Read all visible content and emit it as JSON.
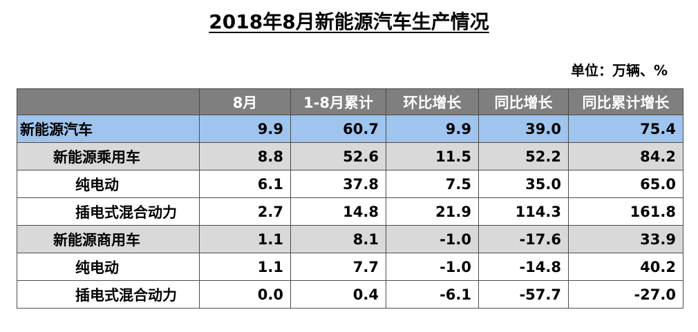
{
  "title": "2018年8月新能源汽车生产情况",
  "unit": "单位：万辆、%",
  "table": {
    "headers": [
      "",
      "8月",
      "1-8月累计",
      "环比增长",
      "同比增长",
      "同比累计增长"
    ],
    "rows": [
      {
        "name": "新能源汽车",
        "values": [
          "9.9",
          "60.7",
          "9.9",
          "39.0",
          "75.4"
        ]
      },
      {
        "name": "新能源乘用车",
        "values": [
          "8.8",
          "52.6",
          "11.5",
          "52.2",
          "84.2"
        ]
      },
      {
        "name": "纯电动",
        "values": [
          "6.1",
          "37.8",
          "7.5",
          "35.0",
          "65.0"
        ]
      },
      {
        "name": "插电式混合动力",
        "values": [
          "2.7",
          "14.8",
          "21.9",
          "114.3",
          "161.8"
        ]
      },
      {
        "name": "新能源商用车",
        "values": [
          "1.1",
          "8.1",
          "-1.0",
          "-17.6",
          "33.9"
        ]
      },
      {
        "name": "纯电动",
        "values": [
          "1.1",
          "7.7",
          "-1.0",
          "-14.8",
          "40.2"
        ]
      },
      {
        "name": "插电式混合动力",
        "values": [
          "0.0",
          "0.4",
          "-6.1",
          "-57.7",
          "-27.0"
        ]
      }
    ]
  },
  "colors": {
    "header_bg": "#7f7f7f",
    "highlight_row": "#9fc4ee",
    "grey_row": "#d9d9d9"
  }
}
